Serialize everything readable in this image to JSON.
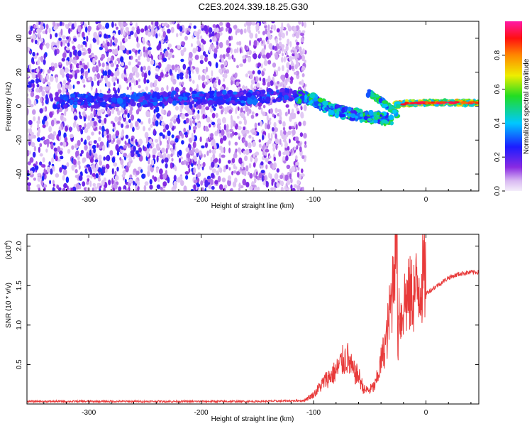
{
  "title": "C2E3.2024.339.18.25.G30",
  "colors": {
    "snr_line": "#e83a3a",
    "axis": "#000000",
    "background": "#ffffff"
  },
  "chart_data": [
    {
      "type": "heatmap",
      "name": "spectrogram",
      "xlabel": "Height of straight line (km)",
      "ylabel": "Frequency (Hz)",
      "xlim": [
        -355,
        47
      ],
      "ylim": [
        -50,
        50
      ],
      "xticks": [
        -300,
        -200,
        -100,
        0
      ],
      "xtick_labels": [
        "-300",
        "-200",
        "-100",
        "0"
      ],
      "yticks": [
        -40,
        -20,
        0,
        20,
        40
      ],
      "ytick_labels": [
        "-40",
        "-20",
        "0",
        "20",
        "40"
      ],
      "colorbar": {
        "label": "Normalized spectral amplitude",
        "range": [
          0,
          1
        ],
        "ticks": [
          0.0,
          0.2,
          0.4,
          0.6,
          0.8
        ],
        "tick_labels": [
          "0.0",
          "0.2",
          "0.4",
          "0.6",
          "0.8"
        ],
        "colormap": "rainbow (white-violet-blue-cyan-green-yellow-red-magenta)"
      },
      "features": {
        "noise_region_x": [
          -355,
          -115
        ],
        "main_band": [
          {
            "x": -320,
            "y": 3
          },
          {
            "x": -280,
            "y": 3
          },
          {
            "x": -240,
            "y": 4
          },
          {
            "x": -200,
            "y": 5
          },
          {
            "x": -160,
            "y": 5
          },
          {
            "x": -120,
            "y": 6
          },
          {
            "x": -100,
            "y": 4
          },
          {
            "x": -85,
            "y": -2
          },
          {
            "x": -70,
            "y": -4
          },
          {
            "x": -55,
            "y": -6
          },
          {
            "x": -40,
            "y": -7
          },
          {
            "x": -30,
            "y": -8
          }
        ],
        "upper_branch": [
          {
            "x": -50,
            "y": 8
          },
          {
            "x": -42,
            "y": 4
          },
          {
            "x": -32,
            "y": -1
          },
          {
            "x": -25,
            "y": -5
          }
        ],
        "late_band": [
          {
            "x": -25,
            "y": 1
          },
          {
            "x": -10,
            "y": 2
          },
          {
            "x": 10,
            "y": 2
          },
          {
            "x": 30,
            "y": 2
          },
          {
            "x": 47,
            "y": 2
          }
        ]
      }
    },
    {
      "type": "line",
      "name": "snr",
      "xlabel": "Height of straight line (km)",
      "ylabel": "SNR (10 * v/v)",
      "multiplier_label": "(x10",
      "multiplier_exponent": "4",
      "multiplier_close": ")",
      "xlim": [
        -355,
        47
      ],
      "ylim": [
        0,
        2.15
      ],
      "xticks": [
        -300,
        -200,
        -100,
        0
      ],
      "xtick_labels": [
        "-300",
        "-200",
        "-100",
        "0"
      ],
      "yticks": [
        0.5,
        1.0,
        1.5,
        2.0
      ],
      "ytick_labels": [
        "0.5",
        "1.0",
        "1.5",
        "2.0"
      ],
      "series": [
        {
          "x": [
            -355,
            -300,
            -250,
            -200,
            -150,
            -110,
            -100,
            -90,
            -80,
            -75,
            -70,
            -65,
            -60,
            -55,
            -50,
            -45,
            -40,
            -35,
            -32,
            -30,
            -28,
            -26,
            -25,
            -24,
            -22,
            -20,
            -15,
            -10,
            -5,
            0,
            10,
            20,
            30,
            40,
            47
          ],
          "y": [
            0.02,
            0.02,
            0.02,
            0.02,
            0.02,
            0.03,
            0.1,
            0.25,
            0.35,
            0.45,
            0.5,
            0.35,
            0.3,
            0.15,
            0.15,
            0.2,
            0.45,
            0.7,
            1.0,
            1.2,
            1.7,
            2.0,
            0.6,
            1.1,
            0.9,
            1.1,
            1.15,
            1.2,
            1.3,
            1.4,
            1.5,
            1.6,
            1.65,
            1.67,
            1.67
          ]
        }
      ]
    }
  ]
}
